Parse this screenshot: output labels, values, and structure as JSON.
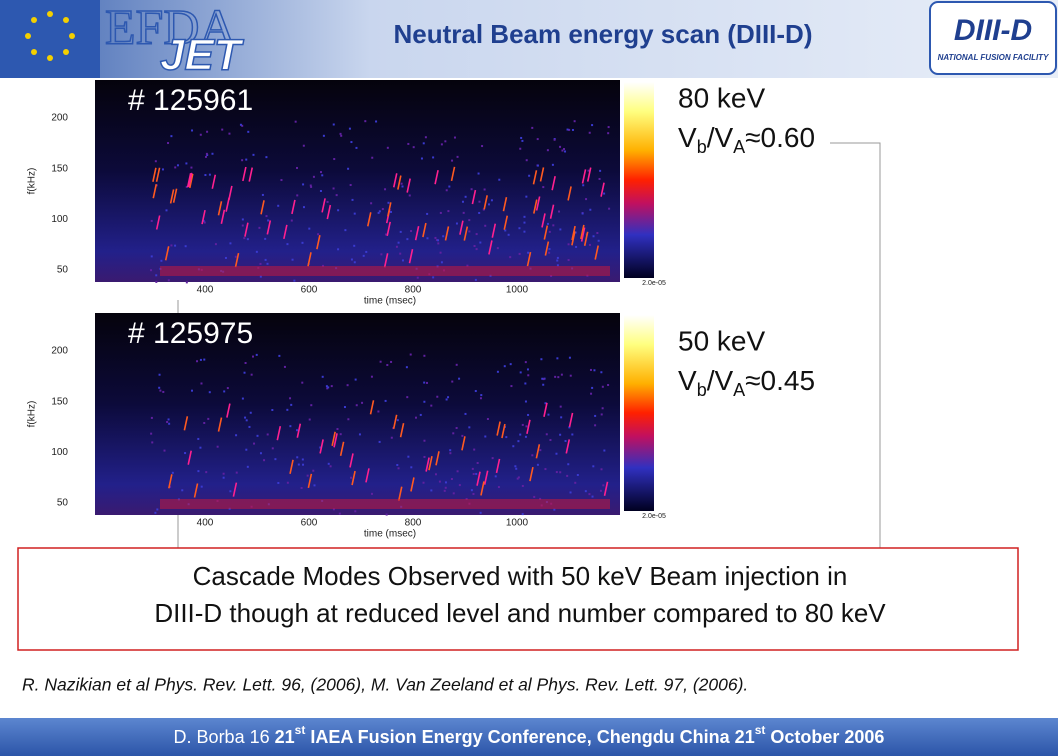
{
  "header": {
    "title": "Neutral Beam energy scan (DIII-D)",
    "logo_left": [
      "EFDA",
      "JET"
    ],
    "logo_right": [
      "DIII-D",
      "NATIONAL FUSION FACILITY"
    ]
  },
  "panels": [
    {
      "shot": "# 125961",
      "energy": "80 keV",
      "ratio": [
        "V",
        "b",
        "/V",
        "A",
        "≈0.60"
      ],
      "colorbar_min": "2.0e-05",
      "y_label": "f(kHz)",
      "x_label": "time (msec)",
      "yticks": [
        50,
        100,
        150,
        200
      ],
      "xticks": [
        400,
        600,
        800,
        1000
      ]
    },
    {
      "shot": "# 125975",
      "energy": "50 keV",
      "ratio": [
        "V",
        "b",
        "/V",
        "A",
        "≈0.45"
      ],
      "colorbar_min": "2.0e-05",
      "y_label": "f(kHz)",
      "x_label": "time (msec)",
      "yticks": [
        50,
        100,
        150,
        200
      ],
      "xticks": [
        400,
        600,
        800,
        1000
      ]
    }
  ],
  "conclusion": [
    "Cascade Modes Observed with 50 keV Beam injection in",
    "DIII-D though at reduced level and number compared to 80 keV"
  ],
  "reference": "R. Nazikian et al Phys. Rev. Lett. 96, (2006), M. Van Zeeland et al Phys. Rev. Lett. 97, (2006).",
  "footer": [
    "D. Borba  16 ",
    "21",
    "st",
    " IAEA Fusion Energy Conference, Chengdu China 21",
    "st",
    " October 2006"
  ]
}
